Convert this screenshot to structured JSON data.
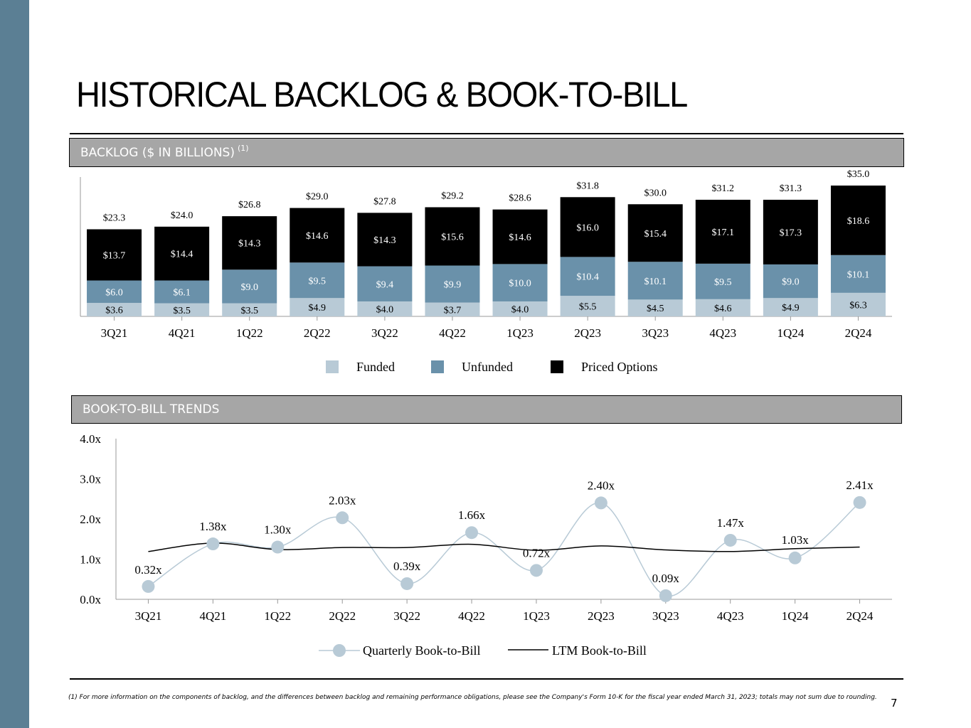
{
  "page": {
    "title": "HISTORICAL BACKLOG & BOOK-TO-BILL",
    "backlog_section": {
      "label": "BACKLOG ($ IN BILLIONS)",
      "note": "(1)"
    },
    "btb_section": {
      "label": "BOOK-TO-BILL TRENDS"
    },
    "footnote": "(1) For more information on the components of backlog, and the differences between backlog and remaining performance obligations, please see the Company's Form 10-K for the fiscal year ended March 31, 2023; totals may not sum due to rounding.",
    "page_number": "7"
  },
  "colors": {
    "sidebar": "#5b7f94",
    "funded": "#b8cad6",
    "unfunded": "#6a91aa",
    "priced_options": "#000000",
    "quarterly_line": "#b8cad6",
    "quarterly_marker": "#b8cad6",
    "ltm_line": "#000000"
  },
  "chart_data": [
    {
      "type": "bar",
      "stacked": true,
      "title": "BACKLOG ($ IN BILLIONS)",
      "categories": [
        "3Q21",
        "4Q21",
        "1Q22",
        "2Q22",
        "3Q22",
        "4Q22",
        "1Q23",
        "2Q23",
        "3Q23",
        "4Q23",
        "1Q24",
        "2Q24"
      ],
      "series": [
        {
          "name": "Funded",
          "values": [
            3.6,
            3.5,
            3.5,
            4.9,
            4.0,
            3.7,
            4.0,
            5.5,
            4.5,
            4.6,
            4.9,
            6.3
          ],
          "labels": [
            "$3.6",
            "$3.5",
            "$3.5",
            "$4.9",
            "$4.0",
            "$3.7",
            "$4.0",
            "$5.5",
            "$4.5",
            "$4.6",
            "$4.9",
            "$6.3"
          ]
        },
        {
          "name": "Unfunded",
          "values": [
            6.0,
            6.1,
            9.0,
            9.5,
            9.4,
            9.9,
            10.0,
            10.4,
            10.1,
            9.5,
            9.0,
            10.1
          ],
          "labels": [
            "$6.0",
            "$6.1",
            "$9.0",
            "$9.5",
            "$9.4",
            "$9.9",
            "$10.0",
            "$10.4",
            "$10.1",
            "$9.5",
            "$9.0",
            "$10.1"
          ]
        },
        {
          "name": "Priced Options",
          "values": [
            13.7,
            14.4,
            14.3,
            14.6,
            14.3,
            15.6,
            14.6,
            16.0,
            15.4,
            17.1,
            17.3,
            18.6
          ],
          "labels": [
            "$13.7",
            "$14.4",
            "$14.3",
            "$14.6",
            "$14.3",
            "$15.6",
            "$14.6",
            "$16.0",
            "$15.4",
            "$17.1",
            "$17.3",
            "$18.6"
          ]
        }
      ],
      "totals": [
        23.3,
        24.0,
        26.8,
        29.0,
        27.8,
        29.2,
        28.6,
        31.8,
        30.0,
        31.2,
        31.3,
        35.0
      ],
      "total_labels": [
        "$23.3",
        "$24.0",
        "$26.8",
        "$29.0",
        "$27.8",
        "$29.2",
        "$28.6",
        "$31.8",
        "$30.0",
        "$31.2",
        "$31.3",
        "$35.0"
      ],
      "legend": [
        "Funded",
        "Unfunded",
        "Priced Options"
      ],
      "legend_position": "bottom",
      "ylim": [
        0,
        36
      ]
    },
    {
      "type": "line",
      "title": "BOOK-TO-BILL TRENDS",
      "categories": [
        "3Q21",
        "4Q21",
        "1Q22",
        "2Q22",
        "3Q22",
        "4Q22",
        "1Q23",
        "2Q23",
        "3Q23",
        "4Q23",
        "1Q24",
        "2Q24"
      ],
      "series": [
        {
          "name": "Quarterly Book-to-Bill",
          "values": [
            0.32,
            1.38,
            1.3,
            2.03,
            0.39,
            1.66,
            0.72,
            2.4,
            0.09,
            1.47,
            1.03,
            2.41
          ],
          "labels": [
            "0.32x",
            "1.38x",
            "1.30x",
            "2.03x",
            "0.39x",
            "1.66x",
            "0.72x",
            "2.40x",
            "0.09x",
            "1.47x",
            "1.03x",
            "2.41x"
          ],
          "smooth": true,
          "markers": true
        },
        {
          "name": "LTM Book-to-Bill",
          "values": [
            1.19,
            1.4,
            1.24,
            1.29,
            1.29,
            1.37,
            1.22,
            1.33,
            1.23,
            1.19,
            1.26,
            1.3
          ],
          "smooth": true,
          "markers": false
        }
      ],
      "yticks": [
        "0.0x",
        "1.0x",
        "2.0x",
        "3.0x",
        "4.0x"
      ],
      "ylim": [
        0,
        4
      ],
      "legend": [
        "Quarterly Book-to-Bill",
        "LTM Book-to-Bill"
      ],
      "legend_position": "bottom"
    }
  ]
}
